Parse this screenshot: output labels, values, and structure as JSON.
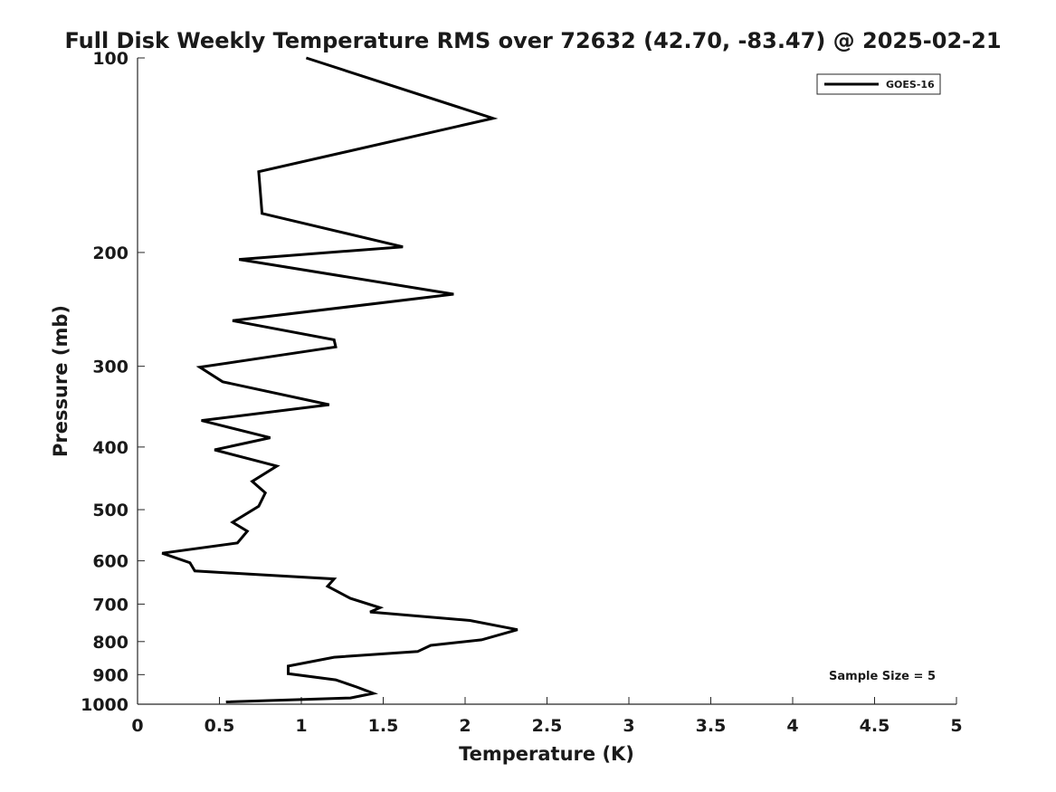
{
  "chart_data": {
    "type": "line",
    "title": "Full Disk Weekly Temperature RMS over 72632 (42.70, -83.47) @ 2025-02-21",
    "xlabel": "Temperature (K)",
    "ylabel": "Pressure (mb)",
    "xlim": [
      0,
      5
    ],
    "ylim": [
      100,
      1000
    ],
    "yscale": "log",
    "y_reversed": true,
    "x_ticks": [
      0,
      0.5,
      1,
      1.5,
      2,
      2.5,
      3,
      3.5,
      4,
      4.5,
      5
    ],
    "x_tick_labels": [
      "0",
      "0.5",
      "1",
      "1.5",
      "2",
      "2.5",
      "3",
      "3.5",
      "4",
      "4.5",
      "5"
    ],
    "y_ticks": [
      100,
      200,
      300,
      400,
      500,
      600,
      700,
      800,
      900,
      1000
    ],
    "y_tick_labels": [
      "100",
      "200",
      "300",
      "400",
      "500",
      "600",
      "700",
      "800",
      "900",
      "1000"
    ],
    "grid": false,
    "legend_position": "top-right",
    "series": [
      {
        "name": "GOES-16",
        "color": "#000000",
        "x": [
          1.03,
          2.17,
          0.74,
          0.76,
          1.62,
          0.62,
          1.93,
          0.58,
          1.2,
          1.21,
          0.38,
          0.52,
          1.17,
          0.39,
          0.81,
          0.47,
          0.85,
          0.7,
          0.78,
          0.74,
          0.58,
          0.67,
          0.61,
          0.15,
          0.32,
          0.35,
          1.2,
          1.16,
          1.3,
          1.48,
          1.42,
          2.03,
          2.32,
          2.1,
          1.79,
          1.71,
          1.2,
          0.92,
          0.92,
          1.21,
          1.34,
          1.44,
          1.3,
          0.54
        ],
        "y": [
          100,
          124,
          150,
          174,
          196,
          205,
          232,
          255,
          273,
          280,
          301,
          317,
          344,
          364,
          387,
          404,
          428,
          452,
          471,
          494,
          523,
          540,
          563,
          584,
          604,
          622,
          640,
          657,
          686,
          709,
          720,
          742,
          767,
          795,
          811,
          829,
          846,
          873,
          897,
          917,
          941,
          962,
          978,
          992
        ]
      }
    ],
    "annotations": [
      "Sample Size = 5"
    ]
  }
}
